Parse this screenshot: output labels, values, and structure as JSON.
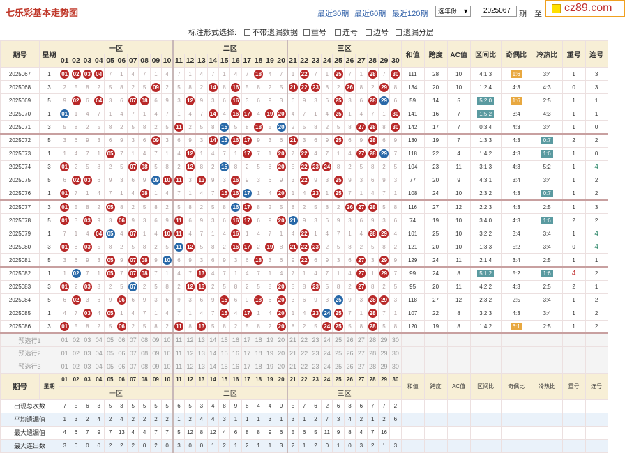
{
  "header": {
    "title": "七乐彩基本走势图",
    "links": [
      "最近30期",
      "最近60期",
      "最近120期"
    ],
    "year_select": "选年份",
    "period_from": "2025067",
    "period_sep": "期",
    "period_to_label": "至",
    "period_to": "2",
    "logo": "cz89.com"
  },
  "options": {
    "label": "标注形式选择:",
    "items": [
      "不带遗漏数据",
      "重号",
      "连号",
      "边号",
      "遗漏分层"
    ]
  },
  "columns": {
    "period": "期号",
    "week": "星期",
    "zones": [
      "一区",
      "二区",
      "三区"
    ],
    "sum": "和值",
    "span": "跨度",
    "ac": "AC值",
    "zone_ratio": "区间比",
    "odd_even": "奇偶比",
    "hot_cold": "冷热比",
    "repeat": "重号",
    "consecutive": "连号"
  },
  "numbers": [
    "01",
    "02",
    "03",
    "04",
    "05",
    "06",
    "07",
    "08",
    "09",
    "10",
    "11",
    "12",
    "13",
    "14",
    "15",
    "16",
    "17",
    "18",
    "19",
    "20",
    "21",
    "22",
    "23",
    "24",
    "25",
    "26",
    "27",
    "28",
    "29",
    "30"
  ],
  "rows": [
    {
      "p": "2025067",
      "w": "1",
      "reds": [
        1,
        2,
        3,
        4,
        18,
        22,
        25,
        28,
        30
      ],
      "blue": [
        1
      ],
      "sum": "111",
      "span": "28",
      "ac": "10",
      "zr": "4:1:3",
      "oe": "1:6",
      "oe_tag": "o",
      "hc": "3:4",
      "hc_tag": "",
      "rep": "1",
      "con": "3"
    },
    {
      "p": "2025068",
      "w": "3",
      "reds": [
        9,
        14,
        16,
        21,
        22,
        23,
        26,
        29
      ],
      "blue": [
        26
      ],
      "sum": "134",
      "span": "20",
      "ac": "10",
      "zr": "1:2:4",
      "oe": "4:3",
      "oe_tag": "",
      "hc": "4:3",
      "hc_tag": "",
      "rep": "0",
      "con": "3"
    },
    {
      "p": "2025069",
      "w": "5",
      "reds": [
        2,
        4,
        7,
        8,
        12,
        16,
        25,
        28
      ],
      "blue": [
        29
      ],
      "sum": "59",
      "span": "14",
      "ac": "5",
      "zr": "5:2:0",
      "zr_tag": "g",
      "oe": "1:6",
      "oe_tag": "o",
      "hc": "2:5",
      "hc_tag": "",
      "rep": "1",
      "con": "1"
    },
    {
      "p": "2025070",
      "w": "1",
      "reds": [
        14,
        16,
        17,
        19,
        20,
        25,
        30
      ],
      "blue": [
        1
      ],
      "sum": "141",
      "span": "16",
      "ac": "7",
      "zr": "1:5:2",
      "zr_tag": "g",
      "oe": "3:4",
      "oe_tag": "",
      "hc": "4:3",
      "hc_tag": "",
      "rep": "1",
      "con": "1"
    },
    {
      "p": "2025071",
      "w": "3",
      "reds": [
        11,
        18,
        27,
        28,
        30
      ],
      "blue": [
        20,
        15
      ],
      "sum": "142",
      "span": "17",
      "ac": "7",
      "zr": "0:3:4",
      "oe": "4:3",
      "oe_tag": "",
      "hc": "3:4",
      "hc_tag": "",
      "rep": "1",
      "con": "0"
    },
    {
      "p": "2025072",
      "w": "5",
      "reds": [
        9,
        14,
        16,
        17,
        21,
        25,
        28
      ],
      "blue": [
        15
      ],
      "sum": "130",
      "span": "19",
      "ac": "7",
      "zr": "1:3:3",
      "oe": "4:3",
      "oe_tag": "",
      "hc": "0:7",
      "hc_tag": "g",
      "rep": "2",
      "con": "2"
    },
    {
      "p": "2025073",
      "w": "1",
      "reds": [
        5,
        12,
        17,
        20,
        22,
        27,
        28
      ],
      "blue": [
        29
      ],
      "sum": "118",
      "span": "22",
      "ac": "4",
      "zr": "1:4:2",
      "oe": "4:3",
      "oe_tag": "",
      "hc": "1:6",
      "hc_tag": "g",
      "rep": "1",
      "con": "0"
    },
    {
      "p": "2025074",
      "w": "3",
      "reds": [
        1,
        7,
        8,
        12,
        20,
        22,
        23,
        24
      ],
      "blue": [
        15
      ],
      "sum": "104",
      "span": "23",
      "ac": "11",
      "zr": "3:1:3",
      "oe": "4:3",
      "oe_tag": "",
      "hc": "5:2",
      "hc_tag": "",
      "rep": "1",
      "con": "4"
    },
    {
      "p": "2025075",
      "w": "5",
      "reds": [
        2,
        3,
        10,
        11,
        13,
        16,
        22,
        25
      ],
      "blue": [
        9
      ],
      "sum": "77",
      "span": "20",
      "ac": "9",
      "zr": "4:3:1",
      "oe": "3:4",
      "oe_tag": "",
      "hc": "3:4",
      "hc_tag": "",
      "rep": "1",
      "con": "2"
    },
    {
      "p": "2025076",
      "w": "1",
      "reds": [
        1,
        8,
        15,
        16,
        20,
        23,
        25
      ],
      "blue": [
        17
      ],
      "sum": "108",
      "span": "24",
      "ac": "10",
      "zr": "2:3:2",
      "oe": "4:3",
      "oe_tag": "",
      "hc": "0:7",
      "hc_tag": "g",
      "rep": "1",
      "con": "2"
    },
    {
      "p": "2025077",
      "w": "3",
      "reds": [
        1,
        5,
        17,
        26,
        27,
        28
      ],
      "blue": [
        16
      ],
      "sum": "116",
      "span": "27",
      "ac": "12",
      "zr": "2:2:3",
      "oe": "4:3",
      "oe_tag": "",
      "hc": "2:5",
      "hc_tag": "",
      "rep": "1",
      "con": "3"
    },
    {
      "p": "2025078",
      "w": "5",
      "reds": [
        1,
        3,
        6,
        11,
        16,
        17,
        20
      ],
      "blue": [
        21
      ],
      "sum": "74",
      "span": "19",
      "ac": "10",
      "zr": "3:4:0",
      "oe": "4:3",
      "oe_tag": "",
      "hc": "1:6",
      "hc_tag": "g",
      "rep": "2",
      "con": "2"
    },
    {
      "p": "2025079",
      "w": "1",
      "reds": [
        4,
        7,
        10,
        11,
        16,
        22,
        28,
        29
      ],
      "blue": [
        5
      ],
      "sum": "101",
      "span": "25",
      "ac": "10",
      "zr": "3:2:2",
      "oe": "3:4",
      "oe_tag": "",
      "hc": "3:4",
      "hc_tag": "",
      "rep": "1",
      "con": "4"
    },
    {
      "p": "2025080",
      "w": "3",
      "reds": [
        1,
        3,
        12,
        16,
        17,
        19,
        21,
        22,
        23
      ],
      "blue": [
        11
      ],
      "sum": "121",
      "span": "20",
      "ac": "10",
      "zr": "1:3:3",
      "oe": "5:2",
      "oe_tag": "",
      "hc": "3:4",
      "hc_tag": "",
      "rep": "0",
      "con": "4"
    },
    {
      "p": "2025081",
      "w": "5",
      "reds": [
        5,
        7,
        8,
        18,
        22,
        27,
        29
      ],
      "blue": [
        10
      ],
      "sum": "129",
      "span": "24",
      "ac": "11",
      "zr": "2:1:4",
      "oe": "3:4",
      "oe_tag": "",
      "hc": "2:5",
      "hc_tag": "",
      "rep": "1",
      "con": "1"
    },
    {
      "p": "2025082",
      "w": "1",
      "reds": [
        5,
        7,
        8,
        13,
        27,
        29
      ],
      "blue": [
        2
      ],
      "sum": "99",
      "span": "24",
      "ac": "8",
      "zr": "5:1:2",
      "zr_tag": "g",
      "oe": "5:2",
      "oe_tag": "",
      "hc": "1:6",
      "hc_tag": "g",
      "rep": "4",
      "con": "2"
    },
    {
      "p": "2025083",
      "w": "3",
      "reds": [
        1,
        3,
        12,
        13,
        20,
        23,
        27
      ],
      "blue": [
        7
      ],
      "sum": "95",
      "span": "20",
      "ac": "11",
      "zr": "4:2:2",
      "oe": "4:3",
      "oe_tag": "",
      "hc": "2:5",
      "hc_tag": "",
      "rep": "2",
      "con": "1"
    },
    {
      "p": "2025084",
      "w": "5",
      "reds": [
        2,
        6,
        15,
        18,
        20,
        28,
        29
      ],
      "blue": [
        25
      ],
      "sum": "118",
      "span": "27",
      "ac": "12",
      "zr": "2:3:2",
      "oe": "2:5",
      "oe_tag": "",
      "hc": "3:4",
      "hc_tag": "",
      "rep": "1",
      "con": "2"
    },
    {
      "p": "2025085",
      "w": "1",
      "reds": [
        3,
        5,
        15,
        17,
        20,
        23,
        25,
        28
      ],
      "blue": [
        24
      ],
      "sum": "107",
      "span": "22",
      "ac": "8",
      "zr": "3:2:3",
      "oe": "4:3",
      "oe_tag": "",
      "hc": "3:4",
      "hc_tag": "",
      "rep": "1",
      "con": "2"
    },
    {
      "p": "2025086",
      "w": "3",
      "reds": [
        1,
        6,
        11,
        13,
        20,
        24,
        25,
        28
      ],
      "blue": [
        24
      ],
      "sum": "120",
      "span": "19",
      "ac": "8",
      "zr": "1:4:2",
      "oe": "6:1",
      "oe_tag": "o",
      "hc": "2:5",
      "hc_tag": "",
      "rep": "1",
      "con": "2"
    }
  ],
  "presets": [
    "预选行1",
    "预选行2",
    "预选行3"
  ],
  "stats": [
    {
      "label": "出现总次数",
      "vals": [
        "7",
        "5",
        "6",
        "3",
        "5",
        "3",
        "5",
        "5",
        "5",
        "5",
        "6",
        "5",
        "3",
        "4",
        "8",
        "9",
        "8",
        "4",
        "4",
        "9",
        "5",
        "7",
        "6",
        "2",
        "6",
        "3",
        "6",
        "7",
        "7",
        "2"
      ]
    },
    {
      "label": "平均遗漏值",
      "vals": [
        "1",
        "3",
        "2",
        "4",
        "2",
        "4",
        "2",
        "2",
        "2",
        "2",
        "1",
        "2",
        "4",
        "4",
        "3",
        "1",
        "1",
        "1",
        "3",
        "1",
        "3",
        "1",
        "2",
        "7",
        "3",
        "4",
        "2",
        "1",
        "2",
        "6"
      ]
    },
    {
      "label": "最大遗漏值",
      "vals": [
        "4",
        "6",
        "7",
        "9",
        "7",
        "13",
        "4",
        "4",
        "7",
        "7",
        "5",
        "12",
        "8",
        "12",
        "4",
        "6",
        "8",
        "8",
        "9",
        "6",
        "5",
        "6",
        "5",
        "11",
        "9",
        "8",
        "4",
        "7",
        "16",
        ""
      ]
    },
    {
      "label": "最大连出数",
      "vals": [
        "3",
        "0",
        "0",
        "0",
        "2",
        "2",
        "2",
        "0",
        "2",
        "0",
        "3",
        "0",
        "0",
        "1",
        "2",
        "1",
        "2",
        "1",
        "1",
        "3",
        "2",
        "1",
        "2",
        "0",
        "1",
        "0",
        "3",
        "2",
        "1",
        "3"
      ]
    }
  ]
}
